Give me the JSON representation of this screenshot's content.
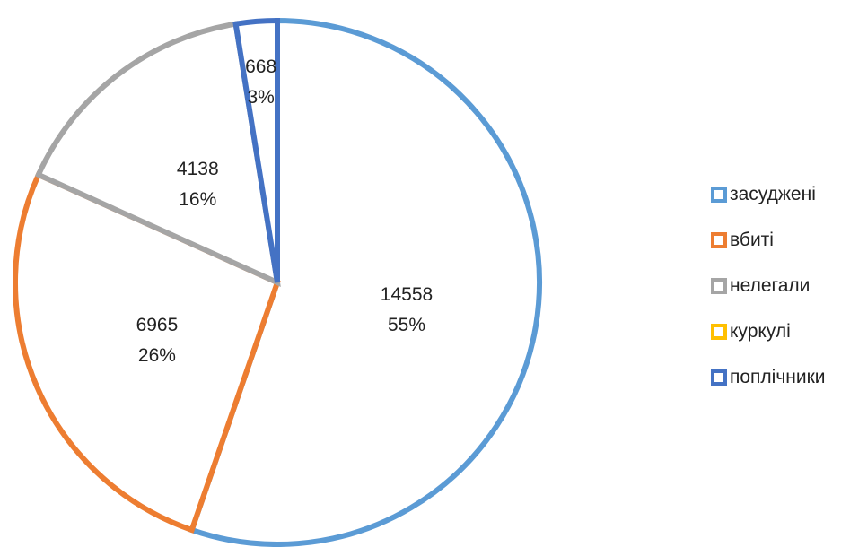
{
  "chart_data": {
    "type": "pie",
    "title": "",
    "categories": [
      "засуджені",
      "вбиті",
      "нелегали",
      "куркулі",
      "поплічники"
    ],
    "values": [
      14558,
      6965,
      4138,
      0,
      668
    ],
    "percent_labels": [
      "55%",
      "26%",
      "16%",
      "0%",
      "3%"
    ],
    "colors": [
      "#5B9BD5",
      "#ED7D31",
      "#A5A5A5",
      "#FFC000",
      "#4472C4"
    ],
    "slice_fill": "#FFFFFF",
    "legend_position": "right",
    "legend": [
      "засуджені",
      "вбиті",
      "нелегали",
      "куркулі",
      "поплічники"
    ]
  }
}
